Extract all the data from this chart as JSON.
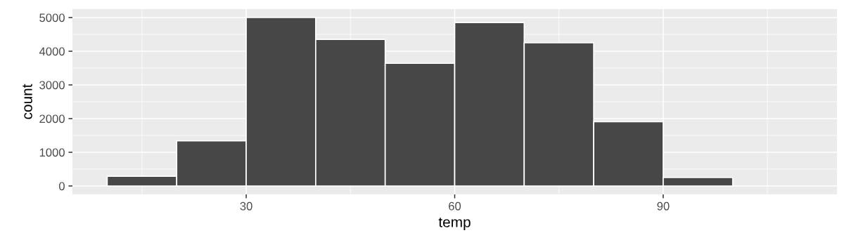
{
  "chart_data": {
    "type": "histogram",
    "xlabel": "temp",
    "ylabel": "count",
    "bins": [
      10,
      20,
      30,
      40,
      50,
      60,
      70,
      80,
      90,
      100
    ],
    "values": [
      290,
      1340,
      5000,
      4350,
      3640,
      4850,
      4250,
      1910,
      250
    ],
    "color": "#474747",
    "xlim": [
      5,
      115
    ],
    "xticks": [
      30,
      60,
      90
    ],
    "ylim": [
      -250,
      5250
    ],
    "yticks": [
      0,
      1000,
      2000,
      3000,
      4000,
      5000
    ],
    "grid": true
  }
}
